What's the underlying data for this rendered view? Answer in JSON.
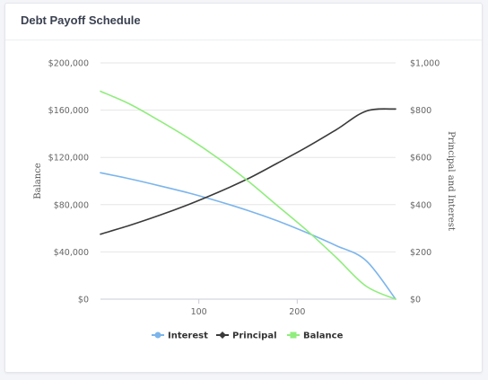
{
  "card": {
    "title": "Debt Payoff Schedule"
  },
  "chart_data": {
    "type": "line",
    "x": [
      0,
      30,
      60,
      90,
      120,
      150,
      180,
      210,
      240,
      270,
      300
    ],
    "xticks": [
      100,
      200
    ],
    "xlim": [
      0,
      300
    ],
    "series": [
      {
        "name": "Interest",
        "axis": "right",
        "color": "#7cb5ec",
        "marker": "circle",
        "values": [
          535,
          509,
          480,
          449,
          414,
          375,
          331,
          281,
          226,
          163,
          0
        ]
      },
      {
        "name": "Principal",
        "axis": "right",
        "color": "#3a3a3a",
        "marker": "diamond",
        "values": [
          275,
          313,
          355,
          401,
          453,
          510,
          576,
          644,
          718,
          796,
          805
        ]
      },
      {
        "name": "Balance",
        "axis": "left",
        "color": "#90ed7d",
        "marker": "square",
        "values": [
          176000,
          165000,
          151000,
          136000,
          119000,
          100000,
          79000,
          58000,
          35000,
          11000,
          0
        ]
      }
    ],
    "yleft": {
      "title": "Balance",
      "ylim": [
        0,
        200000
      ],
      "ticks": [
        {
          "v": 0,
          "label": "$0"
        },
        {
          "v": 40000,
          "label": "$40,000"
        },
        {
          "v": 80000,
          "label": "$80,000"
        },
        {
          "v": 120000,
          "label": "$120,000"
        },
        {
          "v": 160000,
          "label": "$160,000"
        },
        {
          "v": 200000,
          "label": "$200,000"
        }
      ]
    },
    "yright": {
      "title": "Principal and Interest",
      "ylim": [
        0,
        1000
      ],
      "ticks": [
        {
          "v": 0,
          "label": "$0"
        },
        {
          "v": 200,
          "label": "$200"
        },
        {
          "v": 400,
          "label": "$400"
        },
        {
          "v": 600,
          "label": "$600"
        },
        {
          "v": 800,
          "label": "$800"
        },
        {
          "v": 1000,
          "label": "$1,000"
        }
      ]
    },
    "grid": true,
    "legend": "bottom-center"
  }
}
